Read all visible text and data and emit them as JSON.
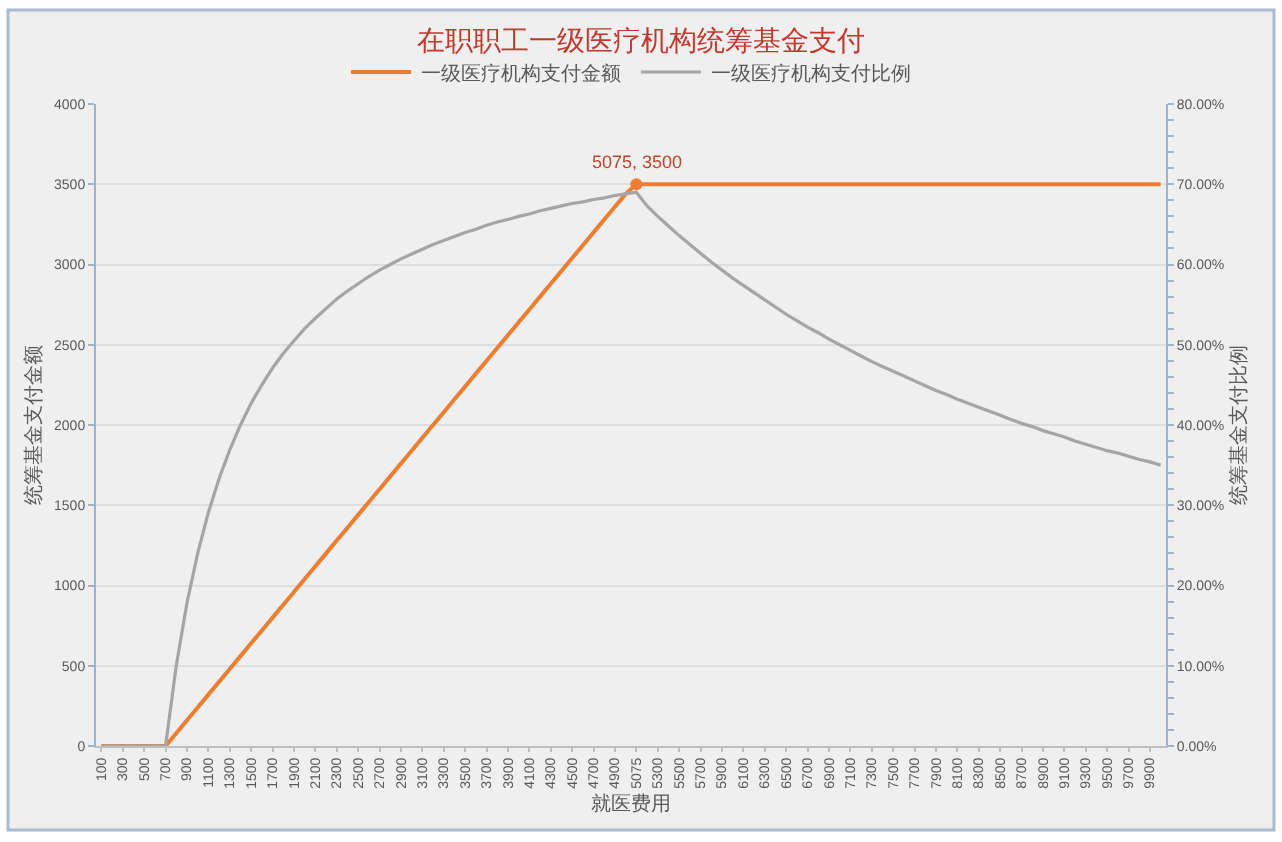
{
  "chart_data": {
    "type": "line",
    "title": "在职职工一级医疗机构统筹基金支付",
    "xlabel": "就医费用",
    "ylabel": "统筹基金支付金额",
    "y2label": "统筹基金支付比例",
    "categories": [
      "100",
      null,
      "300",
      null,
      "500",
      null,
      "700",
      null,
      "900",
      null,
      "1100",
      null,
      "1300",
      null,
      "1500",
      null,
      "1700",
      null,
      "1900",
      null,
      "2100",
      null,
      "2300",
      null,
      "2500",
      null,
      "2700",
      null,
      "2900",
      null,
      "3100",
      null,
      "3300",
      null,
      "3500",
      null,
      "3700",
      null,
      "3900",
      null,
      "4100",
      null,
      "4300",
      null,
      "4500",
      null,
      "4700",
      null,
      "4900",
      null,
      "5075",
      null,
      "5300",
      null,
      "5500",
      null,
      "5700",
      null,
      "5900",
      null,
      "6100",
      null,
      "6300",
      null,
      "6500",
      null,
      "6700",
      null,
      "6900",
      null,
      "7100",
      null,
      "7300",
      null,
      "7500",
      null,
      "7700",
      null,
      "7900",
      null,
      "8100",
      null,
      "8300",
      null,
      "8500",
      null,
      "8700",
      null,
      "8900",
      null,
      "9100",
      null,
      "9300",
      null,
      "9500",
      null,
      "9700",
      null,
      "9900",
      null
    ],
    "series": [
      {
        "name": "一级医疗机构支付金额",
        "color": "#ed7d31",
        "values": [
          0,
          0,
          0,
          0,
          0,
          0,
          0,
          80,
          160,
          240,
          320,
          400,
          480,
          560,
          640,
          720,
          800,
          880,
          960,
          1040,
          1120,
          1200,
          1280,
          1360,
          1440,
          1520,
          1600,
          1680,
          1760,
          1840,
          1920,
          2000,
          2080,
          2160,
          2240,
          2320,
          2400,
          2480,
          2560,
          2640,
          2720,
          2800,
          2880,
          2960,
          3040,
          3120,
          3200,
          3280,
          3360,
          3440,
          3500,
          3500,
          3500,
          3500,
          3500,
          3500,
          3500,
          3500,
          3500,
          3500,
          3500,
          3500,
          3500,
          3500,
          3500,
          3500,
          3500,
          3500,
          3500,
          3500,
          3500,
          3500,
          3500,
          3500,
          3500,
          3500,
          3500,
          3500,
          3500,
          3500,
          3500,
          3500,
          3500,
          3500,
          3500,
          3500,
          3500,
          3500,
          3500,
          3500,
          3500,
          3500,
          3500,
          3500,
          3500,
          3500,
          3500,
          3500,
          3500,
          3500
        ]
      },
      {
        "name": "一级医疗机构支付比例",
        "color": "#a5a5a5",
        "axis": "y2",
        "values": [
          0,
          0,
          0,
          0,
          0,
          0,
          0,
          10.0,
          17.8,
          24.0,
          29.1,
          33.3,
          36.9,
          40.0,
          42.7,
          45.0,
          47.1,
          48.9,
          50.5,
          52.0,
          53.3,
          54.5,
          55.7,
          56.7,
          57.6,
          58.5,
          59.3,
          60.0,
          60.7,
          61.3,
          61.9,
          62.5,
          63.0,
          63.5,
          64.0,
          64.4,
          64.9,
          65.3,
          65.6,
          66.0,
          66.3,
          66.7,
          67.0,
          67.3,
          67.6,
          67.8,
          68.1,
          68.3,
          68.6,
          68.8,
          69.0,
          67.3,
          66.0,
          64.8,
          63.6,
          62.5,
          61.4,
          60.3,
          59.3,
          58.3,
          57.4,
          56.5,
          55.6,
          54.7,
          53.8,
          53.0,
          52.2,
          51.5,
          50.7,
          50.0,
          49.3,
          48.6,
          47.9,
          47.3,
          46.7,
          46.1,
          45.5,
          44.9,
          44.3,
          43.8,
          43.2,
          42.7,
          42.2,
          41.7,
          41.2,
          40.7,
          40.2,
          39.8,
          39.3,
          38.9,
          38.5,
          38.0,
          37.6,
          37.2,
          36.8,
          36.5,
          36.1,
          35.7,
          35.4,
          35.0
        ]
      }
    ],
    "ylim": [
      0,
      4000
    ],
    "yticks": [
      0,
      500,
      1000,
      1500,
      2000,
      2500,
      3000,
      3500,
      4000
    ],
    "y2lim": [
      0,
      80
    ],
    "y2ticks": [
      {
        "value": 0,
        "label": "0.00%"
      },
      {
        "value": 2,
        "label": null
      },
      {
        "value": 4,
        "label": null
      },
      {
        "value": 6,
        "label": null
      },
      {
        "value": 8,
        "label": null
      },
      {
        "value": 10,
        "label": "10.00%"
      },
      {
        "value": 12,
        "label": null
      },
      {
        "value": 14,
        "label": null
      },
      {
        "value": 16,
        "label": null
      },
      {
        "value": 18,
        "label": null
      },
      {
        "value": 20,
        "label": "20.00%"
      },
      {
        "value": 22,
        "label": null
      },
      {
        "value": 24,
        "label": null
      },
      {
        "value": 26,
        "label": null
      },
      {
        "value": 28,
        "label": null
      },
      {
        "value": 30,
        "label": "30.00%"
      },
      {
        "value": 32,
        "label": null
      },
      {
        "value": 34,
        "label": null
      },
      {
        "value": 36,
        "label": null
      },
      {
        "value": 38,
        "label": null
      },
      {
        "value": 40,
        "label": "40.00%"
      },
      {
        "value": 42,
        "label": null
      },
      {
        "value": 44,
        "label": null
      },
      {
        "value": 46,
        "label": null
      },
      {
        "value": 48,
        "label": null
      },
      {
        "value": 50,
        "label": "50.00%"
      },
      {
        "value": 52,
        "label": null
      },
      {
        "value": 54,
        "label": null
      },
      {
        "value": 56,
        "label": null
      },
      {
        "value": 58,
        "label": null
      },
      {
        "value": 60,
        "label": "60.00%"
      },
      {
        "value": 62,
        "label": null
      },
      {
        "value": 64,
        "label": null
      },
      {
        "value": 66,
        "label": null
      },
      {
        "value": 68,
        "label": null
      },
      {
        "value": 70,
        "label": "70.00%"
      },
      {
        "value": 72,
        "label": null
      },
      {
        "value": 74,
        "label": null
      },
      {
        "value": 76,
        "label": null
      },
      {
        "value": 78,
        "label": null
      },
      {
        "value": 80,
        "label": "80.00%"
      }
    ],
    "annotations": [
      {
        "text": "5075, 3500",
        "x": "5075",
        "y": 3500
      }
    ],
    "grid": "y",
    "legend": "top"
  }
}
